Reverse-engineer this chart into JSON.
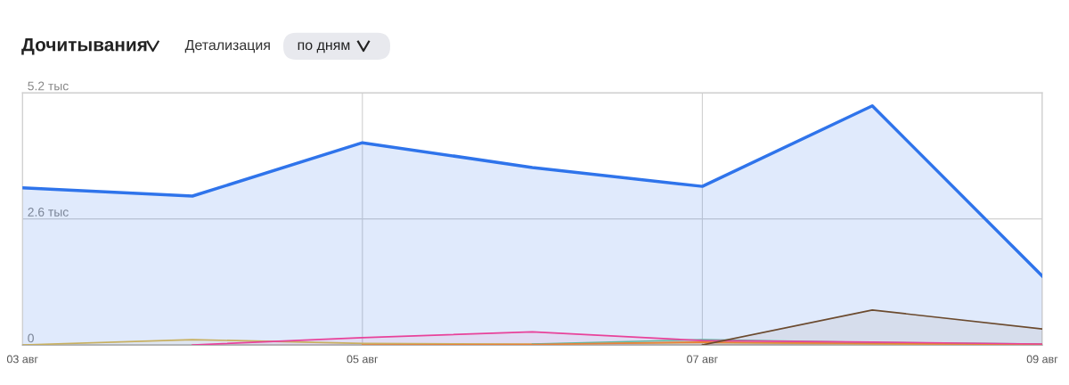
{
  "chart_data": {
    "type": "area",
    "title": "Дочитывания",
    "annotations": [
      "Детализация",
      "по дням"
    ],
    "categories": [
      "03 авг",
      null,
      "05 авг",
      null,
      "07 авг",
      null,
      "09 авг"
    ],
    "series": [
      {
        "color": "#2f74eb",
        "values": [
          3.24,
          3.07,
          4.17,
          3.66,
          3.27,
          4.93,
          1.42
        ]
      },
      {
        "color": "#c8b060",
        "values": [
          0,
          0.11,
          0.03,
          0.02,
          0.05,
          0.02,
          0.01
        ]
      },
      {
        "color": "#5fb8a0",
        "values": [
          null,
          null,
          null,
          0.02,
          0.11,
          0.05,
          0.02
        ]
      },
      {
        "color": "#e8823a",
        "values": [
          null,
          null,
          0,
          0.01,
          0.06,
          0.03,
          0.01
        ]
      },
      {
        "color": "#e8429a",
        "values": [
          null,
          0,
          0.15,
          0.27,
          0.09,
          0.06,
          0.02
        ]
      },
      {
        "color": "#6b4a2e",
        "values": [
          null,
          null,
          null,
          null,
          0,
          0.72,
          0.33
        ]
      }
    ],
    "ylim": [
      0,
      5.2
    ],
    "yticks": [
      0,
      {
        "value": 2.6,
        "label": "2.6 тыс"
      },
      {
        "value": 5.2,
        "label": "5.2 тыс"
      }
    ],
    "grid": true,
    "legend": false,
    "marker": "none",
    "line_style": "solid"
  }
}
